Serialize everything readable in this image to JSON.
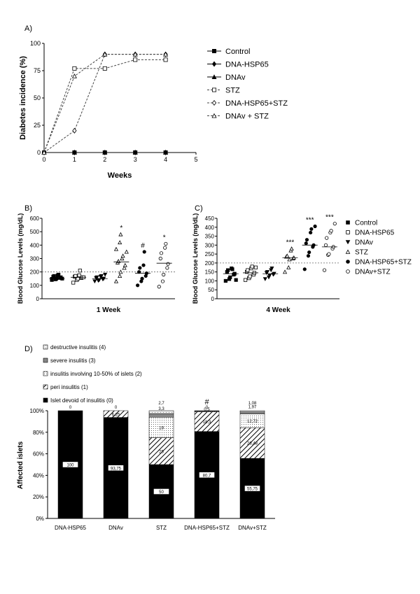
{
  "chart_data": [
    {
      "panel": "A)",
      "type": "line",
      "xlabel": "Weeks",
      "ylabel": "Diabetes incidence (%)",
      "xlim": [
        0,
        5
      ],
      "ylim": [
        0,
        100
      ],
      "xticks": [
        0,
        1,
        2,
        3,
        4,
        5
      ],
      "yticks": [
        0,
        25,
        50,
        75,
        100
      ],
      "grid": false,
      "legend_position": "right",
      "x": [
        0,
        1,
        2,
        3,
        4
      ],
      "series": [
        {
          "name": "Control",
          "values": [
            0,
            0,
            0,
            0,
            0
          ],
          "marker": "filled-square",
          "dash": false
        },
        {
          "name": "DNA-HSP65",
          "values": [
            0,
            0,
            0,
            0,
            0
          ],
          "marker": "filled-diamond",
          "dash": false
        },
        {
          "name": "DNAv",
          "values": [
            0,
            0,
            0,
            0,
            0
          ],
          "marker": "filled-triangle",
          "dash": false
        },
        {
          "name": "STZ",
          "values": [
            0,
            77,
            77,
            85,
            85
          ],
          "marker": "open-square",
          "dash": true
        },
        {
          "name": "DNA-HSP65+STZ",
          "values": [
            0,
            20,
            90,
            90,
            90
          ],
          "marker": "open-diamond",
          "dash": true
        },
        {
          "name": "DNAv + STZ",
          "values": [
            0,
            70,
            90,
            90,
            90
          ],
          "marker": "open-triangle",
          "dash": true
        }
      ]
    },
    {
      "panel": "B)",
      "type": "scatter",
      "xlabel": "1 Week",
      "ylabel": "Blood Glucose Levels (mg/dL)",
      "ylim": [
        0,
        600
      ],
      "yticks": [
        0,
        100,
        200,
        300,
        400,
        500,
        600
      ],
      "threshold": 200,
      "groups": [
        {
          "name": "Control",
          "marker": "filled-square",
          "sig": "",
          "median": 150,
          "values": [
            140,
            145,
            150,
            155,
            160,
            165,
            170,
            175,
            180,
            150,
            148
          ]
        },
        {
          "name": "DNA-HSP65",
          "marker": "open-square",
          "sig": "",
          "median": 160,
          "values": [
            120,
            140,
            150,
            155,
            160,
            165,
            170,
            175,
            210,
            160
          ]
        },
        {
          "name": "DNAv",
          "marker": "filled-triangle-down",
          "sig": "",
          "median": 150,
          "values": [
            130,
            135,
            140,
            145,
            150,
            155,
            160,
            165,
            170,
            180
          ]
        },
        {
          "name": "STZ",
          "marker": "open-triangle",
          "sig": "*",
          "median": 275,
          "values": [
            130,
            170,
            200,
            230,
            250,
            270,
            280,
            300,
            320,
            350,
            370,
            420,
            480
          ]
        },
        {
          "name": "DNA-HSP65+STZ",
          "marker": "filled-circle",
          "sig": "#",
          "median": 190,
          "values": [
            100,
            130,
            150,
            170,
            190,
            200,
            230,
            250,
            350
          ]
        },
        {
          "name": "DNAv+STZ",
          "marker": "open-circle",
          "sig": "*",
          "median": 265,
          "values": [
            90,
            130,
            180,
            230,
            260,
            300,
            340,
            380,
            410
          ]
        }
      ]
    },
    {
      "panel": "C)",
      "type": "scatter",
      "xlabel": "4 Week",
      "ylabel": "Blood Glucose Levels (mg/dL)",
      "ylim": [
        0,
        450
      ],
      "yticks": [
        0,
        50,
        100,
        150,
        200,
        250,
        300,
        350,
        400,
        450
      ],
      "threshold": 200,
      "legend_position": "right",
      "groups": [
        {
          "name": "Control",
          "marker": "filled-square",
          "sig": "",
          "median": 140,
          "values": [
            100,
            110,
            120,
            135,
            140,
            150,
            160,
            170,
            165,
            105
          ]
        },
        {
          "name": "DNA-HSP65",
          "marker": "open-square",
          "sig": "",
          "median": 145,
          "values": [
            105,
            115,
            125,
            135,
            145,
            150,
            160,
            170,
            180,
            175
          ]
        },
        {
          "name": "DNAv",
          "marker": "filled-triangle-down",
          "sig": "",
          "median": 140,
          "values": [
            110,
            120,
            130,
            135,
            140,
            145,
            150,
            160,
            170
          ]
        },
        {
          "name": "STZ",
          "marker": "open-triangle",
          "sig": "***",
          "median": 230,
          "values": [
            150,
            175,
            220,
            225,
            230,
            235,
            240,
            270,
            280
          ]
        },
        {
          "name": "DNA-HSP65+STZ",
          "marker": "filled-circle",
          "sig": "***",
          "median": 300,
          "values": [
            165,
            240,
            260,
            290,
            300,
            310,
            330,
            370,
            390,
            405
          ]
        },
        {
          "name": "DNAv+STZ",
          "marker": "open-circle",
          "sig": "***",
          "median": 290,
          "values": [
            160,
            245,
            250,
            280,
            290,
            300,
            340,
            370,
            380,
            420
          ]
        }
      ]
    },
    {
      "panel": "D)",
      "type": "bar",
      "stacked": true,
      "ylabel": "Affected islets",
      "ylim": [
        0,
        100
      ],
      "yticks": [
        "0%",
        "20%",
        "40%",
        "60%",
        "80%",
        "100%"
      ],
      "categories": [
        "DNA-HSP65",
        "DNAv",
        "STZ",
        "DNA-HSP65+STZ",
        "DNAv+STZ"
      ],
      "category_marks": [
        "",
        "",
        "",
        "#",
        ""
      ],
      "legend_position": "top",
      "series": [
        {
          "name": "Islet devoid of insulitis (0)",
          "fill": "solid-black",
          "values": [
            100,
            93.75,
            50,
            80.7,
            55.75
          ],
          "labels": [
            "100",
            "93,75",
            "50",
            "80,7",
            "55,75"
          ]
        },
        {
          "name": "peri insulitis (1)",
          "fill": "hatch",
          "values": [
            0,
            6.25,
            25,
            18.3,
            28.48
          ],
          "labels": [
            "",
            "6,25",
            "25",
            "18,3",
            "28,48"
          ]
        },
        {
          "name": "insulitis involving 10-50% of islets (2)",
          "fill": "dots",
          "values": [
            0,
            0,
            19,
            0.5,
            12.72
          ],
          "labels": [
            "",
            "",
            "19",
            "0,5",
            "12,72"
          ]
        },
        {
          "name": "severe insulitis (3)",
          "fill": "grey",
          "values": [
            0,
            0,
            3.3,
            0.5,
            1.97
          ],
          "labels": [
            "",
            "",
            "3,3",
            "",
            "1,97"
          ]
        },
        {
          "name": "destructive insulitis (4)",
          "fill": "light-dots",
          "values": [
            0,
            0,
            2.7,
            0,
            1.08
          ],
          "labels": [
            "0",
            "0",
            "2,7",
            "0",
            "1,08"
          ]
        }
      ]
    }
  ]
}
